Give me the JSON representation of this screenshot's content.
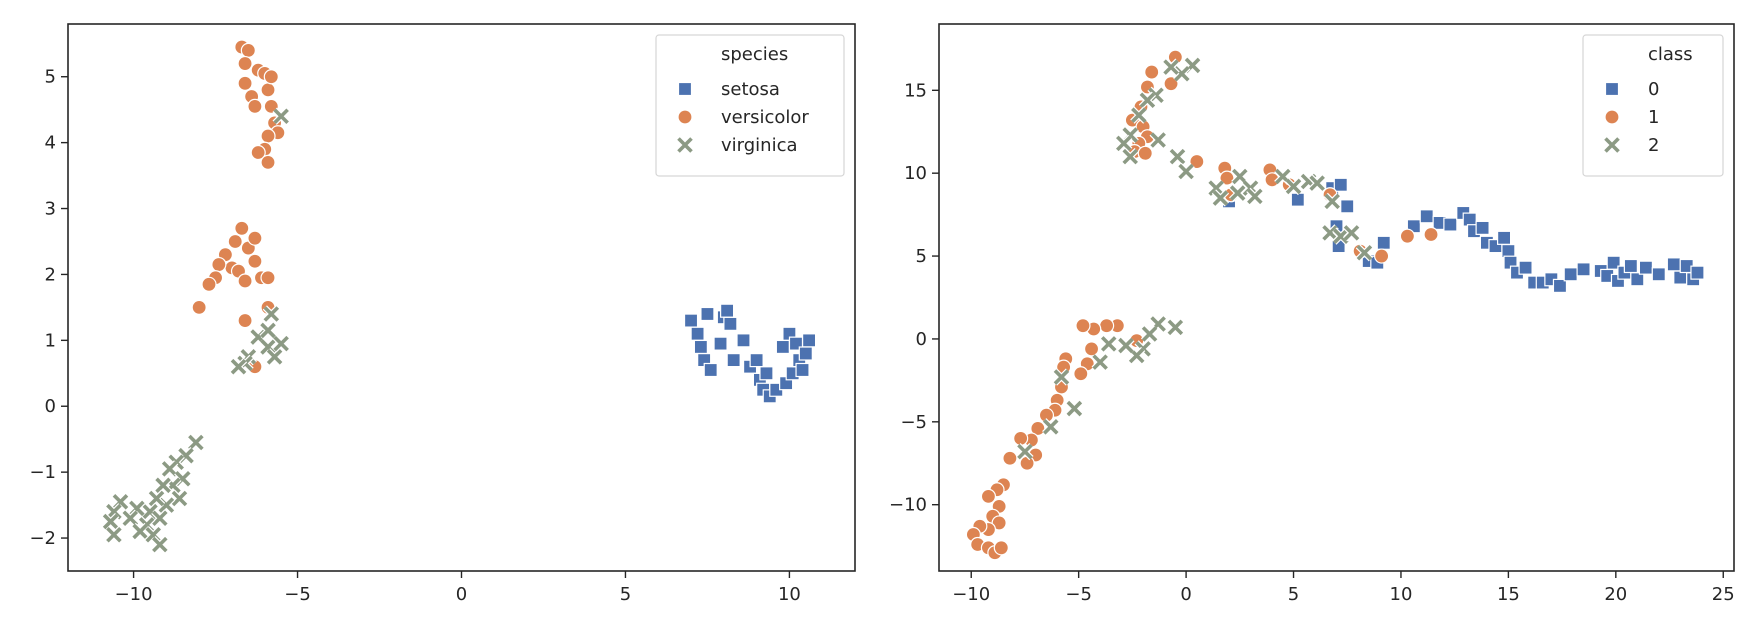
{
  "chart_data": [
    {
      "type": "scatter",
      "title": "",
      "xlabel": "",
      "ylabel": "",
      "xlim": [
        -12,
        12
      ],
      "ylim": [
        -2.5,
        5.8
      ],
      "xticks": [
        -10,
        -5,
        0,
        5,
        10
      ],
      "yticks": [
        -2,
        -1,
        0,
        1,
        2,
        3,
        4,
        5
      ],
      "legend": {
        "title": "species",
        "placement": "top-right"
      },
      "series": [
        {
          "name": "setosa",
          "marker": "square",
          "color": "#4c72b0",
          "points": [
            [
              7.0,
              1.3
            ],
            [
              7.2,
              1.1
            ],
            [
              7.3,
              0.9
            ],
            [
              7.4,
              0.7
            ],
            [
              7.5,
              1.4
            ],
            [
              7.6,
              0.55
            ],
            [
              7.9,
              0.95
            ],
            [
              8.0,
              1.35
            ],
            [
              8.1,
              1.45
            ],
            [
              8.2,
              1.25
            ],
            [
              8.3,
              0.7
            ],
            [
              8.6,
              1.0
            ],
            [
              8.8,
              0.6
            ],
            [
              9.0,
              0.7
            ],
            [
              9.1,
              0.4
            ],
            [
              9.2,
              0.25
            ],
            [
              9.3,
              0.5
            ],
            [
              9.4,
              0.15
            ],
            [
              9.6,
              0.25
            ],
            [
              9.8,
              0.9
            ],
            [
              9.9,
              0.35
            ],
            [
              10.0,
              1.1
            ],
            [
              10.1,
              0.5
            ],
            [
              10.2,
              0.95
            ],
            [
              10.3,
              0.7
            ],
            [
              10.4,
              0.55
            ],
            [
              10.5,
              0.8
            ],
            [
              10.6,
              1.0
            ]
          ]
        },
        {
          "name": "versicolor",
          "marker": "circle",
          "color": "#dd8452",
          "points": [
            [
              -6.7,
              5.45
            ],
            [
              -6.5,
              5.4
            ],
            [
              -6.6,
              5.2
            ],
            [
              -6.6,
              4.9
            ],
            [
              -6.4,
              4.7
            ],
            [
              -6.3,
              4.55
            ],
            [
              -6.2,
              5.1
            ],
            [
              -6.0,
              5.05
            ],
            [
              -5.9,
              4.8
            ],
            [
              -5.8,
              5.0
            ],
            [
              -5.8,
              4.55
            ],
            [
              -5.7,
              4.3
            ],
            [
              -5.6,
              4.15
            ],
            [
              -5.9,
              4.1
            ],
            [
              -6.0,
              3.9
            ],
            [
              -6.2,
              3.85
            ],
            [
              -5.9,
              3.7
            ],
            [
              -6.7,
              2.7
            ],
            [
              -6.9,
              2.5
            ],
            [
              -6.5,
              2.4
            ],
            [
              -6.3,
              2.55
            ],
            [
              -7.2,
              2.3
            ],
            [
              -7.0,
              2.1
            ],
            [
              -6.8,
              2.05
            ],
            [
              -7.4,
              2.15
            ],
            [
              -7.5,
              1.95
            ],
            [
              -7.7,
              1.85
            ],
            [
              -6.6,
              1.9
            ],
            [
              -6.3,
              2.2
            ],
            [
              -6.1,
              1.95
            ],
            [
              -5.9,
              1.95
            ],
            [
              -5.9,
              1.5
            ],
            [
              -8.0,
              1.5
            ],
            [
              -6.6,
              1.3
            ],
            [
              -6.3,
              0.6
            ]
          ]
        },
        {
          "name": "virginica",
          "marker": "x",
          "color": "#8c9a84",
          "points": [
            [
              -5.5,
              4.4
            ],
            [
              -6.2,
              1.05
            ],
            [
              -5.9,
              1.15
            ],
            [
              -5.8,
              1.4
            ],
            [
              -5.9,
              0.9
            ],
            [
              -5.7,
              0.75
            ],
            [
              -5.5,
              0.95
            ],
            [
              -6.5,
              0.75
            ],
            [
              -6.6,
              0.65
            ],
            [
              -6.8,
              0.6
            ],
            [
              -8.1,
              -0.55
            ],
            [
              -8.4,
              -0.75
            ],
            [
              -8.7,
              -0.85
            ],
            [
              -8.9,
              -0.95
            ],
            [
              -8.5,
              -1.1
            ],
            [
              -8.8,
              -1.2
            ],
            [
              -9.1,
              -1.2
            ],
            [
              -8.6,
              -1.4
            ],
            [
              -9.0,
              -1.5
            ],
            [
              -9.3,
              -1.4
            ],
            [
              -9.5,
              -1.6
            ],
            [
              -9.2,
              -1.7
            ],
            [
              -9.6,
              -1.8
            ],
            [
              -9.9,
              -1.55
            ],
            [
              -10.1,
              -1.7
            ],
            [
              -10.4,
              -1.45
            ],
            [
              -10.6,
              -1.6
            ],
            [
              -10.7,
              -1.75
            ],
            [
              -10.6,
              -1.95
            ],
            [
              -9.8,
              -1.9
            ],
            [
              -9.4,
              -1.95
            ],
            [
              -9.2,
              -2.1
            ]
          ]
        }
      ]
    },
    {
      "type": "scatter",
      "title": "",
      "xlabel": "",
      "ylabel": "",
      "xlim": [
        -11.5,
        25.5
      ],
      "ylim": [
        -14,
        19
      ],
      "xticks": [
        -10,
        -5,
        0,
        5,
        10,
        15,
        20,
        25
      ],
      "yticks": [
        -10,
        -5,
        0,
        5,
        10,
        15
      ],
      "legend": {
        "title": "class",
        "placement": "top-right"
      },
      "series": [
        {
          "name": "0",
          "marker": "square",
          "color": "#4c72b0",
          "points": [
            [
              2.0,
              8.3
            ],
            [
              5.2,
              8.4
            ],
            [
              6.8,
              9.1
            ],
            [
              7.2,
              9.3
            ],
            [
              7.5,
              8.0
            ],
            [
              7.0,
              6.8
            ],
            [
              7.1,
              5.6
            ],
            [
              8.5,
              4.7
            ],
            [
              8.9,
              4.6
            ],
            [
              9.2,
              5.8
            ],
            [
              10.6,
              6.8
            ],
            [
              11.2,
              7.4
            ],
            [
              11.8,
              7.0
            ],
            [
              12.3,
              6.9
            ],
            [
              12.9,
              7.6
            ],
            [
              13.2,
              7.2
            ],
            [
              13.4,
              6.5
            ],
            [
              13.8,
              6.7
            ],
            [
              14.0,
              5.8
            ],
            [
              14.4,
              5.6
            ],
            [
              14.8,
              6.1
            ],
            [
              15.0,
              5.3
            ],
            [
              15.1,
              4.6
            ],
            [
              15.4,
              4.0
            ],
            [
              15.8,
              4.3
            ],
            [
              16.2,
              3.4
            ],
            [
              16.6,
              3.4
            ],
            [
              17.0,
              3.6
            ],
            [
              17.4,
              3.2
            ],
            [
              17.9,
              3.9
            ],
            [
              18.5,
              4.2
            ],
            [
              19.3,
              4.1
            ],
            [
              19.6,
              3.8
            ],
            [
              19.9,
              4.6
            ],
            [
              20.1,
              3.5
            ],
            [
              20.4,
              4.0
            ],
            [
              20.7,
              4.4
            ],
            [
              21.0,
              3.6
            ],
            [
              21.4,
              4.3
            ],
            [
              22.0,
              3.9
            ],
            [
              22.7,
              4.5
            ],
            [
              23.0,
              3.7
            ],
            [
              23.3,
              4.4
            ],
            [
              23.6,
              3.6
            ],
            [
              23.8,
              4.0
            ]
          ]
        },
        {
          "name": "1",
          "marker": "circle",
          "color": "#dd8452",
          "points": [
            [
              -0.5,
              17.0
            ],
            [
              -0.7,
              15.4
            ],
            [
              -1.6,
              16.1
            ],
            [
              -1.8,
              15.2
            ],
            [
              -2.1,
              14.0
            ],
            [
              -2.5,
              13.2
            ],
            [
              -2.0,
              12.8
            ],
            [
              -1.8,
              12.2
            ],
            [
              -2.2,
              11.8
            ],
            [
              -2.4,
              11.3
            ],
            [
              -1.9,
              11.2
            ],
            [
              0.5,
              10.7
            ],
            [
              1.8,
              10.3
            ],
            [
              1.9,
              9.7
            ],
            [
              2.1,
              8.7
            ],
            [
              3.9,
              10.2
            ],
            [
              4.0,
              9.6
            ],
            [
              4.8,
              9.3
            ],
            [
              6.7,
              8.7
            ],
            [
              8.1,
              5.3
            ],
            [
              9.1,
              5.0
            ],
            [
              10.3,
              6.2
            ],
            [
              11.4,
              6.3
            ],
            [
              -2.3,
              -0.1
            ],
            [
              -3.2,
              0.8
            ],
            [
              -3.7,
              0.8
            ],
            [
              -4.3,
              0.6
            ],
            [
              -4.8,
              0.8
            ],
            [
              -4.4,
              -0.6
            ],
            [
              -4.6,
              -1.5
            ],
            [
              -4.9,
              -2.1
            ],
            [
              -5.6,
              -1.2
            ],
            [
              -5.7,
              -1.7
            ],
            [
              -5.8,
              -2.9
            ],
            [
              -6.0,
              -3.7
            ],
            [
              -6.1,
              -4.3
            ],
            [
              -6.5,
              -4.6
            ],
            [
              -6.9,
              -5.4
            ],
            [
              -7.2,
              -6.1
            ],
            [
              -7.7,
              -6.0
            ],
            [
              -7.0,
              -7.0
            ],
            [
              -7.4,
              -7.5
            ],
            [
              -8.2,
              -7.2
            ],
            [
              -8.5,
              -8.8
            ],
            [
              -8.8,
              -9.1
            ],
            [
              -9.2,
              -9.5
            ],
            [
              -8.7,
              -10.1
            ],
            [
              -9.0,
              -10.7
            ],
            [
              -8.7,
              -11.1
            ],
            [
              -9.2,
              -11.5
            ],
            [
              -9.6,
              -11.3
            ],
            [
              -9.9,
              -11.8
            ],
            [
              -9.7,
              -12.4
            ],
            [
              -9.2,
              -12.6
            ],
            [
              -8.9,
              -12.9
            ],
            [
              -8.6,
              -12.6
            ]
          ]
        },
        {
          "name": "2",
          "marker": "x",
          "color": "#8c9a84",
          "points": [
            [
              0.3,
              16.5
            ],
            [
              -0.2,
              16.0
            ],
            [
              -0.7,
              16.4
            ],
            [
              -1.4,
              14.7
            ],
            [
              -1.8,
              14.4
            ],
            [
              -2.2,
              13.5
            ],
            [
              -2.6,
              12.3
            ],
            [
              -2.9,
              11.8
            ],
            [
              -2.6,
              11.0
            ],
            [
              -1.3,
              12.0
            ],
            [
              -0.4,
              11.0
            ],
            [
              0.0,
              10.1
            ],
            [
              1.4,
              9.1
            ],
            [
              1.6,
              8.5
            ],
            [
              2.4,
              8.8
            ],
            [
              2.5,
              9.8
            ],
            [
              3.0,
              9.1
            ],
            [
              3.2,
              8.6
            ],
            [
              4.5,
              9.8
            ],
            [
              5.0,
              9.2
            ],
            [
              5.7,
              9.5
            ],
            [
              6.1,
              9.4
            ],
            [
              6.8,
              8.3
            ],
            [
              6.7,
              6.4
            ],
            [
              7.2,
              6.2
            ],
            [
              7.7,
              6.4
            ],
            [
              8.3,
              5.2
            ],
            [
              -0.5,
              0.7
            ],
            [
              -1.3,
              0.9
            ],
            [
              -1.7,
              0.3
            ],
            [
              -2.0,
              -0.6
            ],
            [
              -2.3,
              -1.0
            ],
            [
              -2.8,
              -0.4
            ],
            [
              -3.6,
              -0.3
            ],
            [
              -4.0,
              -1.4
            ],
            [
              -5.8,
              -2.3
            ],
            [
              -5.2,
              -4.2
            ],
            [
              -6.3,
              -5.3
            ],
            [
              -7.5,
              -6.8
            ]
          ]
        }
      ]
    }
  ]
}
